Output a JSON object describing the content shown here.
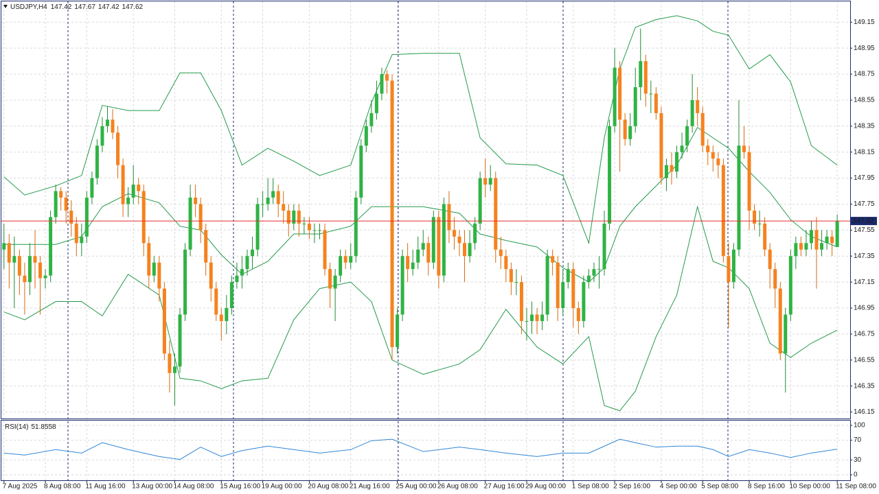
{
  "chart_data": {
    "type": "candlestick",
    "title": "USDJPY,H4",
    "open": [
      147.4,
      147.45,
      147.3,
      147.35,
      147.2,
      147.15,
      147.35,
      147.3,
      147.18,
      147.2,
      147.65,
      147.85,
      147.8,
      147.7,
      147.6,
      147.45,
      147.5,
      147.8,
      147.95,
      148.2,
      148.35,
      148.4,
      148.3,
      148.05,
      147.75,
      147.8,
      147.9,
      147.85,
      147.45,
      147.2,
      147.3,
      147.1,
      146.6,
      146.45,
      146.5,
      146.9,
      147.4,
      147.8,
      147.75,
      147.55,
      147.3,
      147.1,
      146.9,
      146.85,
      146.95,
      147.15,
      147.2,
      147.25,
      147.35,
      147.4,
      147.75,
      147.75,
      147.8,
      147.85,
      147.75,
      147.7,
      147.6,
      147.7,
      147.6,
      147.6,
      147.55,
      147.55,
      147.55,
      147.25,
      147.1,
      147.2,
      147.35,
      147.3,
      147.35,
      147.8,
      148.2,
      148.35,
      148.45,
      148.6,
      148.75,
      148.7,
      146.65,
      146.9,
      147.35,
      147.25,
      147.3,
      147.4,
      147.45,
      147.3,
      147.65,
      147.2,
      147.75,
      147.55,
      147.5,
      147.45,
      147.35,
      147.45,
      147.6,
      147.95,
      147.9,
      147.95,
      147.4,
      147.35,
      147.25,
      147.15,
      147.15,
      146.85,
      146.85,
      146.9,
      146.85,
      146.9,
      147.35,
      147.3,
      146.95,
      147.15,
      147.25,
      146.95,
      146.85,
      147.15,
      147.2,
      147.25,
      147.25,
      147.6,
      148.35,
      148.8,
      148.4,
      148.25,
      148.35,
      148.65,
      148.85,
      148.6,
      148.6,
      148.45,
      147.95,
      148.05,
      148.0,
      148.15,
      148.2,
      148.35,
      148.55,
      148.45,
      148.2,
      148.15,
      148.1,
      148.05,
      147.35,
      147.15,
      147.4,
      148.2,
      148.15,
      147.7,
      147.6,
      147.6,
      147.4,
      147.25,
      147.1,
      146.6,
      146.9,
      147.35,
      147.45,
      147.4,
      147.45,
      147.55,
      147.4,
      147.45,
      147.5,
      147.42
    ],
    "high": [
      147.6,
      147.52,
      147.5,
      147.4,
      147.3,
      147.45,
      147.55,
      147.35,
      147.25,
      147.7,
      147.9,
      147.88,
      147.85,
      147.78,
      147.65,
      147.6,
      147.85,
      148.0,
      148.25,
      148.42,
      148.5,
      148.48,
      148.35,
      148.1,
      147.88,
      148.05,
      147.95,
      147.9,
      147.5,
      147.35,
      147.35,
      147.15,
      146.7,
      146.6,
      146.95,
      147.45,
      147.9,
      147.9,
      147.8,
      147.6,
      147.35,
      147.15,
      146.95,
      147.05,
      147.2,
      147.3,
      147.35,
      147.4,
      147.5,
      147.8,
      147.85,
      147.95,
      147.95,
      147.9,
      147.85,
      147.75,
      147.75,
      147.75,
      147.65,
      147.65,
      147.6,
      147.6,
      147.6,
      147.3,
      147.25,
      147.4,
      147.4,
      147.45,
      147.85,
      148.25,
      148.4,
      148.55,
      148.7,
      148.8,
      148.78,
      148.75,
      146.95,
      147.4,
      147.45,
      147.4,
      147.5,
      147.55,
      147.5,
      147.7,
      147.7,
      147.8,
      147.85,
      147.65,
      147.55,
      147.55,
      147.55,
      147.65,
      148.0,
      148.1,
      148.05,
      148.0,
      147.5,
      147.4,
      147.3,
      147.25,
      147.2,
      146.95,
      147.0,
      146.95,
      147.0,
      147.4,
      147.4,
      147.35,
      147.25,
      147.3,
      147.3,
      147.0,
      147.2,
      147.25,
      147.3,
      147.35,
      147.7,
      148.4,
      148.95,
      148.85,
      148.45,
      148.45,
      148.8,
      149.1,
      148.9,
      148.7,
      148.65,
      148.5,
      148.1,
      148.15,
      148.2,
      148.3,
      148.4,
      148.75,
      148.65,
      148.5,
      148.25,
      148.2,
      148.15,
      148.1,
      147.45,
      147.45,
      148.55,
      148.35,
      148.2,
      147.75,
      147.7,
      147.65,
      147.45,
      147.3,
      147.15,
      146.95,
      147.4,
      147.5,
      147.5,
      147.55,
      147.62,
      147.65,
      147.55,
      147.55,
      147.55,
      147.67
    ],
    "low": [
      147.25,
      147.1,
      146.95,
      147.05,
      146.9,
      147.05,
      147.1,
      146.9,
      147.1,
      147.15,
      147.6,
      147.7,
      147.6,
      147.5,
      147.35,
      147.35,
      147.45,
      147.75,
      147.9,
      148.15,
      148.3,
      148.25,
      147.95,
      147.65,
      147.65,
      147.75,
      147.75,
      147.35,
      147.1,
      147.15,
      147.0,
      146.55,
      146.3,
      146.2,
      146.45,
      146.85,
      147.35,
      147.65,
      147.45,
      147.2,
      147.0,
      146.85,
      146.7,
      146.75,
      146.9,
      147.1,
      147.1,
      147.2,
      147.25,
      147.35,
      147.65,
      147.7,
      147.75,
      147.65,
      147.6,
      147.5,
      147.55,
      147.5,
      147.52,
      147.48,
      147.45,
      147.48,
      147.2,
      146.95,
      146.85,
      147.15,
      147.25,
      147.25,
      147.3,
      147.75,
      148.15,
      148.3,
      148.4,
      148.55,
      148.6,
      146.55,
      146.6,
      146.85,
      147.15,
      147.2,
      147.25,
      147.35,
      147.2,
      147.25,
      147.1,
      147.15,
      147.45,
      147.4,
      147.35,
      147.15,
      147.3,
      147.4,
      147.55,
      147.8,
      147.85,
      147.3,
      147.25,
      147.15,
      147.05,
      147.05,
      146.75,
      146.7,
      146.75,
      146.75,
      146.78,
      146.85,
      147.2,
      146.85,
      146.9,
      147.1,
      146.8,
      146.75,
      146.8,
      147.1,
      147.15,
      147.1,
      147.2,
      147.55,
      148.3,
      148.0,
      148.2,
      148.2,
      148.3,
      148.55,
      148.5,
      148.45,
      148.4,
      147.9,
      147.85,
      147.9,
      147.95,
      148.1,
      148.15,
      148.3,
      148.35,
      148.15,
      148.05,
      148.0,
      147.95,
      147.3,
      146.8,
      147.1,
      147.35,
      148.1,
      147.55,
      147.55,
      147.5,
      147.35,
      147.1,
      146.95,
      146.55,
      146.3,
      146.85,
      147.25,
      147.35,
      147.35,
      147.4,
      147.1,
      147.35,
      147.4,
      147.35,
      147.42
    ],
    "close": [
      147.45,
      147.3,
      147.35,
      147.2,
      147.15,
      147.35,
      147.3,
      147.18,
      147.2,
      147.65,
      147.85,
      147.8,
      147.7,
      147.6,
      147.45,
      147.5,
      147.8,
      147.95,
      148.2,
      148.35,
      148.4,
      148.3,
      148.05,
      147.75,
      147.8,
      147.9,
      147.85,
      147.45,
      147.2,
      147.3,
      147.1,
      146.6,
      146.45,
      146.5,
      146.9,
      147.4,
      147.8,
      147.75,
      147.55,
      147.3,
      147.1,
      146.9,
      146.85,
      146.95,
      147.15,
      147.2,
      147.25,
      147.35,
      147.4,
      147.75,
      147.75,
      147.8,
      147.85,
      147.75,
      147.7,
      147.6,
      147.7,
      147.6,
      147.6,
      147.55,
      147.55,
      147.55,
      147.25,
      147.1,
      147.2,
      147.35,
      147.3,
      147.35,
      147.8,
      148.2,
      148.35,
      148.45,
      148.6,
      148.75,
      148.7,
      146.65,
      146.9,
      147.35,
      147.25,
      147.3,
      147.4,
      147.45,
      147.3,
      147.65,
      147.2,
      147.75,
      147.55,
      147.5,
      147.45,
      147.35,
      147.45,
      147.6,
      147.95,
      147.9,
      147.95,
      147.4,
      147.35,
      147.25,
      147.15,
      147.15,
      146.85,
      146.85,
      146.9,
      146.85,
      146.9,
      147.35,
      147.3,
      146.95,
      147.15,
      147.25,
      146.95,
      146.85,
      147.15,
      147.2,
      147.25,
      147.25,
      147.6,
      148.35,
      148.8,
      148.4,
      148.25,
      148.35,
      148.65,
      148.85,
      148.6,
      148.6,
      148.45,
      147.95,
      148.05,
      148.0,
      148.15,
      148.2,
      148.35,
      148.55,
      148.45,
      148.2,
      148.15,
      148.1,
      148.05,
      147.35,
      147.15,
      147.4,
      148.2,
      148.15,
      147.7,
      147.6,
      147.6,
      147.4,
      147.25,
      147.1,
      146.6,
      146.9,
      147.35,
      147.45,
      147.4,
      147.45,
      147.55,
      147.4,
      147.45,
      147.5,
      147.45,
      147.62
    ],
    "colors": {
      "up": "#2fb344",
      "down": "#f5821f",
      "wick_up": "#1f8a33",
      "wick_down": "#d8690d",
      "price_line": "#e32b2b",
      "price_tag": "#1a2a6c"
    },
    "xlim": [
      -0.5,
      163.5
    ],
    "xticks": [
      {
        "value": 0,
        "label": "7 Aug 2025"
      },
      {
        "value": 8,
        "label": "8 Aug 08:00"
      },
      {
        "value": 16,
        "label": "11 Aug 16:00"
      },
      {
        "value": 25,
        "label": "13 Aug 00:00"
      },
      {
        "value": 33,
        "label": "14 Aug 08:00"
      },
      {
        "value": 42,
        "label": "15 Aug 16:00"
      },
      {
        "value": 50,
        "label": "19 Aug 00:00"
      },
      {
        "value": 59,
        "label": "20 Aug 08:00"
      },
      {
        "value": 67,
        "label": "21 Aug 16:00"
      },
      {
        "value": 76,
        "label": "25 Aug 00:00"
      },
      {
        "value": 84,
        "label": "26 Aug 08:00"
      },
      {
        "value": 93,
        "label": "27 Aug 16:00"
      },
      {
        "value": 101,
        "label": "29 Aug 00:00"
      },
      {
        "value": 110,
        "label": "1 Sep 08:00"
      },
      {
        "value": 118,
        "label": "2 Sep 16:00"
      },
      {
        "value": 127,
        "label": "4 Sep 00:00"
      },
      {
        "value": 135,
        "label": "5 Sep 08:00"
      },
      {
        "value": 144,
        "label": "8 Sep 16:00"
      },
      {
        "value": 152,
        "label": "10 Sep 00:00"
      },
      {
        "value": 161,
        "label": "11 Sep 08:00"
      }
    ],
    "ylim": [
      146.1,
      149.31
    ],
    "yticks": [
      149.15,
      148.95,
      148.75,
      148.55,
      148.35,
      148.15,
      147.95,
      147.75,
      147.55,
      147.35,
      147.15,
      146.95,
      146.75,
      146.55,
      146.35,
      146.15
    ],
    "grid": true,
    "bands": {
      "color": "#239a4b",
      "x": [
        0,
        4,
        10,
        15,
        19,
        24,
        30,
        34,
        38,
        42,
        46,
        51,
        56,
        61,
        67,
        71,
        75,
        81,
        88,
        92,
        97,
        103,
        108,
        113,
        116,
        119,
        122,
        126,
        130,
        134,
        137,
        140,
        144,
        148,
        152,
        156,
        161
      ],
      "upper": [
        147.96,
        147.82,
        147.89,
        147.97,
        148.51,
        148.47,
        148.47,
        148.76,
        148.76,
        148.47,
        148.05,
        148.18,
        148.08,
        147.97,
        148.05,
        148.53,
        148.9,
        148.91,
        148.91,
        148.26,
        148.06,
        148.05,
        147.97,
        147.45,
        148.26,
        148.79,
        149.11,
        149.17,
        149.2,
        149.16,
        149.08,
        149.05,
        148.79,
        148.9,
        148.69,
        148.2,
        148.05
      ],
      "middle": [
        147.44,
        147.44,
        147.44,
        147.5,
        147.73,
        147.83,
        147.76,
        147.58,
        147.55,
        147.36,
        147.21,
        147.31,
        147.52,
        147.52,
        147.58,
        147.73,
        147.73,
        147.73,
        147.68,
        147.52,
        147.47,
        147.42,
        147.26,
        147.15,
        147.26,
        147.58,
        147.73,
        147.89,
        148.05,
        148.34,
        148.26,
        148.18,
        148.0,
        147.84,
        147.63,
        147.5,
        147.42
      ],
      "lower": [
        146.92,
        146.86,
        147.0,
        147.0,
        146.89,
        147.21,
        147.05,
        146.41,
        146.39,
        146.33,
        146.39,
        146.41,
        146.86,
        147.1,
        147.15,
        147.0,
        146.55,
        146.44,
        146.52,
        146.63,
        146.94,
        146.65,
        146.52,
        146.73,
        146.2,
        146.16,
        146.31,
        146.73,
        147.05,
        147.73,
        147.31,
        147.26,
        147.1,
        146.68,
        146.57,
        146.68,
        146.78
      ]
    },
    "rsi": {
      "name": "RSI(14)",
      "current": 51.8558,
      "color": "#2f86d6",
      "ylim": [
        0,
        100
      ],
      "yticks": [
        100,
        70,
        30,
        0
      ],
      "x": [
        0,
        4,
        10,
        15,
        19,
        24,
        30,
        34,
        38,
        42,
        46,
        51,
        56,
        61,
        67,
        71,
        75,
        81,
        88,
        92,
        97,
        103,
        108,
        113,
        116,
        119,
        122,
        126,
        130,
        134,
        137,
        140,
        144,
        148,
        152,
        156,
        161
      ],
      "values": [
        44,
        40,
        51,
        44,
        65,
        51,
        37,
        31,
        56,
        37,
        49,
        58,
        51,
        44,
        51,
        69,
        72,
        47,
        56,
        51,
        44,
        37,
        44,
        44,
        58,
        72,
        65,
        56,
        58,
        58,
        51,
        37,
        51,
        44,
        35,
        44,
        51.8558
      ]
    }
  }
}
